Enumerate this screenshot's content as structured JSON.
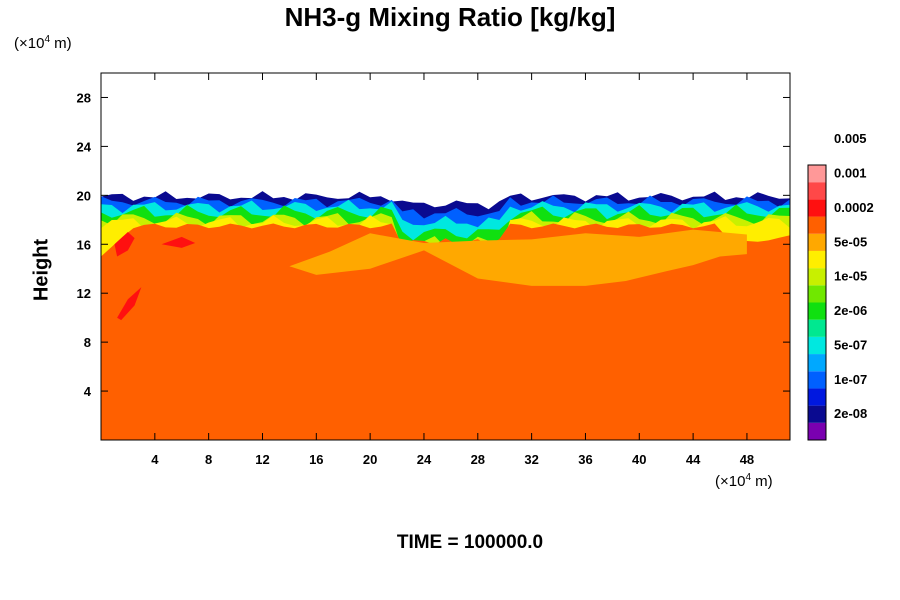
{
  "chart_data": {
    "type": "heatmap",
    "title": "NH3-g Mixing Ratio [kg/kg]",
    "ylabel": "Height",
    "x_unit": {
      "prefix": "(×10",
      "exp": "4",
      "suffix": " m)"
    },
    "y_unit": {
      "prefix": "(×10",
      "exp": "4",
      "suffix": " m)"
    },
    "xlim": [
      0,
      51.2
    ],
    "ylim": [
      0,
      30
    ],
    "x_ticks": [
      4,
      8,
      12,
      16,
      20,
      24,
      28,
      32,
      36,
      40,
      44,
      48
    ],
    "y_ticks": [
      4,
      8,
      12,
      16,
      20,
      24,
      28
    ],
    "footer": "TIME = 100000.0",
    "colorbar": {
      "colors": [
        "#7a00b0",
        "#0a0a90",
        "#0018e0",
        "#0060ff",
        "#00a8ff",
        "#00e8e0",
        "#00e890",
        "#10e010",
        "#70e800",
        "#c8f000",
        "#ffee00",
        "#ffa800",
        "#ff6000",
        "#ff1010",
        "#ff4848",
        "#ff9898"
      ],
      "labels": [
        "2e-08",
        "1e-07",
        "5e-07",
        "2e-06",
        "1e-05",
        "5e-05",
        "0.0002",
        "0.001",
        "0.005"
      ]
    }
  },
  "colors": {
    "background": "#ff6000",
    "upper_plume": "#ffa800",
    "red_patch": "#ff1010",
    "top_empty": "#ffffff"
  }
}
